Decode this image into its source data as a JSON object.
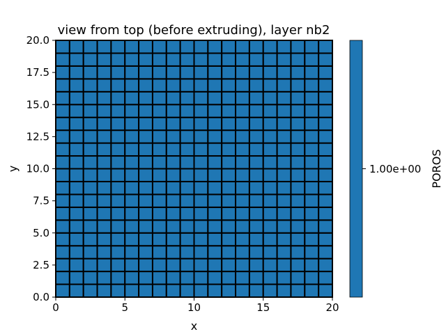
{
  "chart_data": {
    "type": "heatmap",
    "title": "view from top (before extruding), layer nb2",
    "xlabel": "x",
    "ylabel": "y",
    "xlim": [
      0,
      20
    ],
    "ylim": [
      0,
      20
    ],
    "x_ticks": [
      "0",
      "5",
      "10",
      "15",
      "20"
    ],
    "x_tick_values": [
      0,
      5,
      10,
      15,
      20
    ],
    "y_ticks": [
      "0.0",
      "2.5",
      "5.0",
      "7.5",
      "10.0",
      "12.5",
      "15.0",
      "17.5",
      "20.0"
    ],
    "y_tick_values": [
      0,
      2.5,
      5,
      7.5,
      10,
      12.5,
      15,
      17.5,
      20
    ],
    "grid": {
      "nx": 20,
      "ny": 20,
      "cell_size": 1,
      "value": 1.0,
      "edge_color": "#000000"
    },
    "colorbar": {
      "label": "POROS",
      "tick_label": "1.00e+00",
      "tick_value": 1.0,
      "color": "#1f77b4"
    },
    "cell_color": "#1f77b4",
    "grid_lines": false
  }
}
